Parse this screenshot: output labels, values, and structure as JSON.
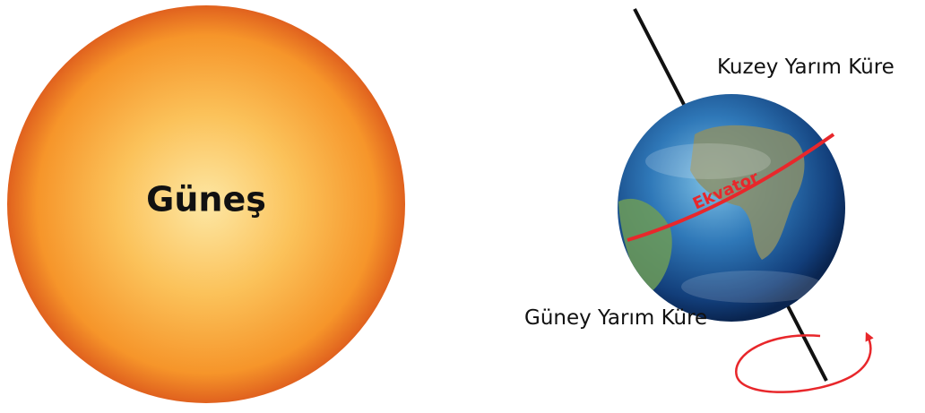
{
  "sun": {
    "label": "Güneş"
  },
  "earth": {
    "north_label": "Kuzey Yarım Küre",
    "equator_label": "Ekvator",
    "south_label": "Güney Yarım Küre"
  }
}
